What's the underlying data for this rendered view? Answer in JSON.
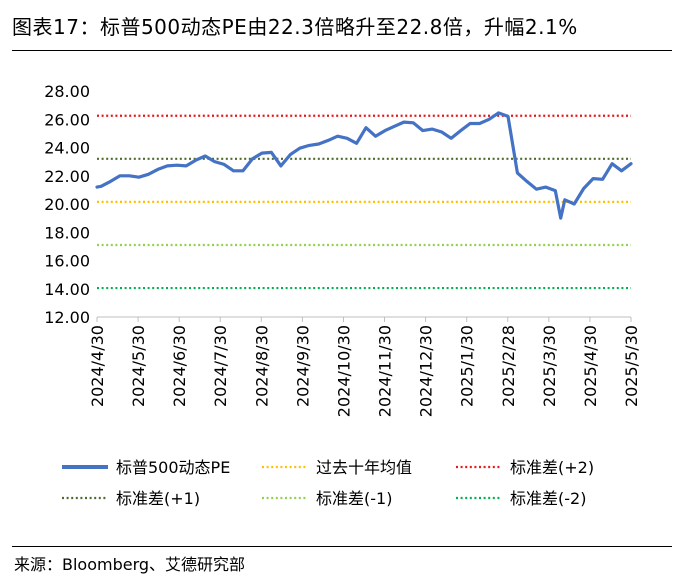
{
  "title": "图表17：标普500动态PE由22.3倍略升至22.8倍，升幅2.1%",
  "source": "来源：Bloomberg、艾德研究部",
  "chart_data": {
    "type": "line",
    "title": "图表17：标普500动态PE由22.3倍略升至22.8倍，升幅2.1%",
    "xlabel": "",
    "ylabel": "",
    "ylim": [
      12,
      28
    ],
    "yticks": [
      "12.00",
      "14.00",
      "16.00",
      "18.00",
      "20.00",
      "22.00",
      "24.00",
      "26.00",
      "28.00"
    ],
    "x_tick_labels": [
      "2024/4/30",
      "2024/5/30",
      "2024/6/30",
      "2024/7/30",
      "2024/8/30",
      "2024/9/30",
      "2024/10/30",
      "2024/11/30",
      "2024/12/30",
      "2025/1/30",
      "2025/2/28",
      "2025/3/30",
      "2025/4/30",
      "2025/5/30"
    ],
    "grid": false,
    "legend_position": "bottom",
    "series": [
      {
        "name": "标普500动态PE",
        "style": "solid",
        "color": "#4472C4",
        "x": [
          "2024-04-30",
          "2024-05-03",
          "2024-05-10",
          "2024-05-17",
          "2024-05-24",
          "2024-05-31",
          "2024-06-07",
          "2024-06-14",
          "2024-06-21",
          "2024-06-28",
          "2024-07-05",
          "2024-07-12",
          "2024-07-19",
          "2024-07-26",
          "2024-08-02",
          "2024-08-09",
          "2024-08-16",
          "2024-08-23",
          "2024-08-30",
          "2024-09-06",
          "2024-09-13",
          "2024-09-20",
          "2024-09-27",
          "2024-10-04",
          "2024-10-11",
          "2024-10-18",
          "2024-10-25",
          "2024-11-01",
          "2024-11-08",
          "2024-11-15",
          "2024-11-22",
          "2024-11-29",
          "2024-12-06",
          "2024-12-13",
          "2024-12-20",
          "2024-12-27",
          "2025-01-03",
          "2025-01-10",
          "2025-01-17",
          "2025-01-24",
          "2025-01-31",
          "2025-02-07",
          "2025-02-14",
          "2025-02-21",
          "2025-02-28",
          "2025-03-07",
          "2025-03-14",
          "2025-03-21",
          "2025-03-28",
          "2025-04-04",
          "2025-04-08",
          "2025-04-11",
          "2025-04-18",
          "2025-04-25",
          "2025-05-02",
          "2025-05-09",
          "2025-05-16",
          "2025-05-23",
          "2025-05-30"
        ],
        "values": [
          21.2,
          21.25,
          21.6,
          22.0,
          22.0,
          21.9,
          22.1,
          22.45,
          22.7,
          22.75,
          22.7,
          23.1,
          23.4,
          23.0,
          22.8,
          22.35,
          22.35,
          23.2,
          23.6,
          23.65,
          22.7,
          23.5,
          23.95,
          24.15,
          24.25,
          24.5,
          24.8,
          24.65,
          24.3,
          25.4,
          24.8,
          25.2,
          25.5,
          25.8,
          25.75,
          25.2,
          25.3,
          25.1,
          24.65,
          25.2,
          25.7,
          25.7,
          26.0,
          26.45,
          26.2,
          22.2,
          21.6,
          21.05,
          21.2,
          20.95,
          19.0,
          20.3,
          20.0,
          21.1,
          21.8,
          21.75,
          22.85,
          22.35,
          22.85
        ]
      },
      {
        "name": "过去十年均值",
        "style": "dotted",
        "color": "#FFC000",
        "value": 20.15
      },
      {
        "name": "标准差(+2)",
        "style": "dotted",
        "color": "#E31A1C",
        "value": 26.25
      },
      {
        "name": "标准差(+1)",
        "style": "dotted",
        "color": "#4E6B2E",
        "value": 23.2
      },
      {
        "name": "标准差(-1)",
        "style": "dotted",
        "color": "#92D050",
        "value": 17.1
      },
      {
        "name": "标准差(-2)",
        "style": "dotted",
        "color": "#00B050",
        "value": 14.05
      }
    ]
  }
}
